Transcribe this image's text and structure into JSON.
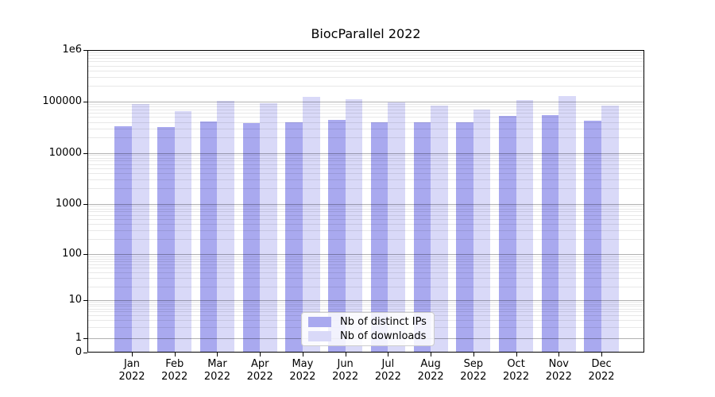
{
  "title": "BiocParallel 2022",
  "chart_data": {
    "type": "bar",
    "title": "BiocParallel 2022",
    "categories": [
      "Jan 2022",
      "Feb 2022",
      "Mar 2022",
      "Apr 2022",
      "May 2022",
      "Jun 2022",
      "Jul 2022",
      "Aug 2022",
      "Sep 2022",
      "Oct 2022",
      "Nov 2022",
      "Dec 2022"
    ],
    "series": [
      {
        "name": "Nb of distinct IPs",
        "color": "#a9a9ef",
        "values": [
          33000,
          32000,
          41000,
          38000,
          39000,
          44000,
          39000,
          39000,
          39000,
          52000,
          54000,
          43000
        ]
      },
      {
        "name": "Nb of downloads",
        "color": "#d9d9f8",
        "values": [
          90000,
          65000,
          104000,
          94000,
          123000,
          110000,
          95000,
          84000,
          69000,
          109000,
          129000,
          84000
        ]
      }
    ],
    "yscale": "log",
    "ylim": [
      0,
      1000000
    ],
    "ytick_labels": [
      "0",
      "1",
      "10",
      "100",
      "1000",
      "10000",
      "100000",
      "1e6"
    ],
    "ytick_values": [
      0,
      1,
      10,
      100,
      1000,
      10000,
      100000,
      1000000
    ],
    "grid": true,
    "legend_position": "lower center"
  }
}
